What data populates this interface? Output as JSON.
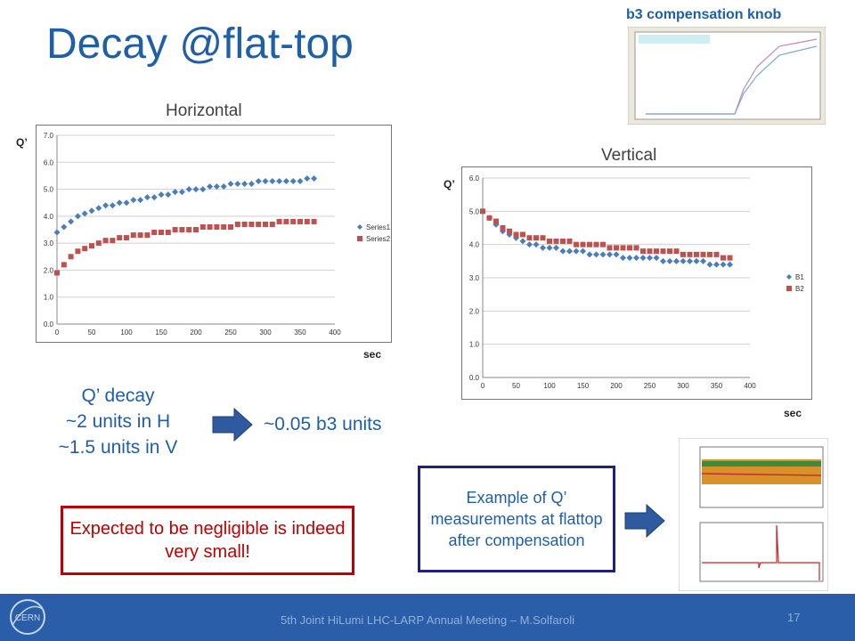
{
  "slide": {
    "title": "Decay @flat-top",
    "horizontal_label": "Horizontal",
    "vertical_label": "Vertical",
    "qprime_label": "Q’",
    "sec_label": "sec",
    "knob_label": "b3 compensation knob",
    "decay_lines": [
      "Q’ decay",
      "~2 units in H",
      "~1.5 units in V"
    ],
    "result": "~0.05 b3 units",
    "callout_red": "Expected to be negligible is indeed very small!",
    "callout_blue": "Example of Q’ measurements at flattop after compensation",
    "footer": "5th Joint HiLumi LHC-LARP Annual Meeting – M.Solfaroli",
    "page_number": "17",
    "logo_text": "CERN",
    "colors": {
      "accent": "#1f5fa8",
      "red": "#c00000",
      "navy": "#1f2080",
      "arrow": "#2f5aa0",
      "footer": "#2a5ea8"
    }
  },
  "chart_data": [
    {
      "type": "scatter",
      "title": "",
      "xlabel": "sec",
      "ylabel": "Q’",
      "xlim": [
        0,
        400
      ],
      "ylim": [
        0,
        7
      ],
      "xticks": [
        0,
        50,
        100,
        150,
        200,
        250,
        300,
        350,
        400
      ],
      "yticks": [
        0.0,
        1.0,
        2.0,
        3.0,
        4.0,
        5.0,
        6.0,
        7.0
      ],
      "tick_decimals": 1,
      "grid": true,
      "legend": "right",
      "series": [
        {
          "name": "Series1",
          "color": "#4a7ebb",
          "marker": "diamond",
          "x": [
            0,
            10,
            20,
            30,
            40,
            50,
            60,
            70,
            80,
            90,
            100,
            110,
            120,
            130,
            140,
            150,
            160,
            170,
            180,
            190,
            200,
            210,
            220,
            230,
            240,
            250,
            260,
            270,
            280,
            290,
            300,
            310,
            320,
            330,
            340,
            350,
            360,
            370
          ],
          "y": [
            3.4,
            3.6,
            3.8,
            4.0,
            4.1,
            4.2,
            4.3,
            4.4,
            4.4,
            4.5,
            4.5,
            4.6,
            4.6,
            4.7,
            4.7,
            4.8,
            4.8,
            4.9,
            4.9,
            5.0,
            5.0,
            5.0,
            5.1,
            5.1,
            5.1,
            5.2,
            5.2,
            5.2,
            5.2,
            5.3,
            5.3,
            5.3,
            5.3,
            5.3,
            5.3,
            5.3,
            5.4,
            5.4
          ]
        },
        {
          "name": "Series2",
          "color": "#c0504d",
          "marker": "square",
          "x": [
            0,
            10,
            20,
            30,
            40,
            50,
            60,
            70,
            80,
            90,
            100,
            110,
            120,
            130,
            140,
            150,
            160,
            170,
            180,
            190,
            200,
            210,
            220,
            230,
            240,
            250,
            260,
            270,
            280,
            290,
            300,
            310,
            320,
            330,
            340,
            350,
            360,
            370
          ],
          "y": [
            1.9,
            2.2,
            2.5,
            2.7,
            2.8,
            2.9,
            3.0,
            3.1,
            3.1,
            3.2,
            3.2,
            3.3,
            3.3,
            3.3,
            3.4,
            3.4,
            3.4,
            3.5,
            3.5,
            3.5,
            3.5,
            3.6,
            3.6,
            3.6,
            3.6,
            3.6,
            3.7,
            3.7,
            3.7,
            3.7,
            3.7,
            3.7,
            3.8,
            3.8,
            3.8,
            3.8,
            3.8,
            3.8
          ]
        }
      ]
    },
    {
      "type": "scatter",
      "title": "",
      "xlabel": "sec",
      "ylabel": "Q’",
      "xlim": [
        0,
        400
      ],
      "ylim": [
        0,
        6
      ],
      "xticks": [
        0,
        50,
        100,
        150,
        200,
        250,
        300,
        350,
        400
      ],
      "yticks": [
        0.0,
        1.0,
        2.0,
        3.0,
        4.0,
        5.0,
        6.0
      ],
      "tick_decimals": 1,
      "grid": true,
      "legend": "right",
      "series": [
        {
          "name": "B1",
          "color": "#4a7ebb",
          "marker": "diamond",
          "x": [
            0,
            10,
            20,
            30,
            40,
            50,
            60,
            70,
            80,
            90,
            100,
            110,
            120,
            130,
            140,
            150,
            160,
            170,
            180,
            190,
            200,
            210,
            220,
            230,
            240,
            250,
            260,
            270,
            280,
            290,
            300,
            310,
            320,
            330,
            340,
            350,
            360,
            370
          ],
          "y": [
            5.0,
            4.8,
            4.6,
            4.4,
            4.3,
            4.2,
            4.1,
            4.0,
            4.0,
            3.9,
            3.9,
            3.9,
            3.8,
            3.8,
            3.8,
            3.8,
            3.7,
            3.7,
            3.7,
            3.7,
            3.7,
            3.6,
            3.6,
            3.6,
            3.6,
            3.6,
            3.6,
            3.5,
            3.5,
            3.5,
            3.5,
            3.5,
            3.5,
            3.5,
            3.4,
            3.4,
            3.4,
            3.4
          ]
        },
        {
          "name": "B2",
          "color": "#c0504d",
          "marker": "square",
          "x": [
            0,
            10,
            20,
            30,
            40,
            50,
            60,
            70,
            80,
            90,
            100,
            110,
            120,
            130,
            140,
            150,
            160,
            170,
            180,
            190,
            200,
            210,
            220,
            230,
            240,
            250,
            260,
            270,
            280,
            290,
            300,
            310,
            320,
            330,
            340,
            350,
            360,
            370
          ],
          "y": [
            5.0,
            4.8,
            4.7,
            4.5,
            4.4,
            4.3,
            4.3,
            4.2,
            4.2,
            4.2,
            4.1,
            4.1,
            4.1,
            4.1,
            4.0,
            4.0,
            4.0,
            4.0,
            4.0,
            3.9,
            3.9,
            3.9,
            3.9,
            3.9,
            3.8,
            3.8,
            3.8,
            3.8,
            3.8,
            3.8,
            3.7,
            3.7,
            3.7,
            3.7,
            3.7,
            3.7,
            3.6,
            3.6
          ]
        }
      ]
    }
  ]
}
